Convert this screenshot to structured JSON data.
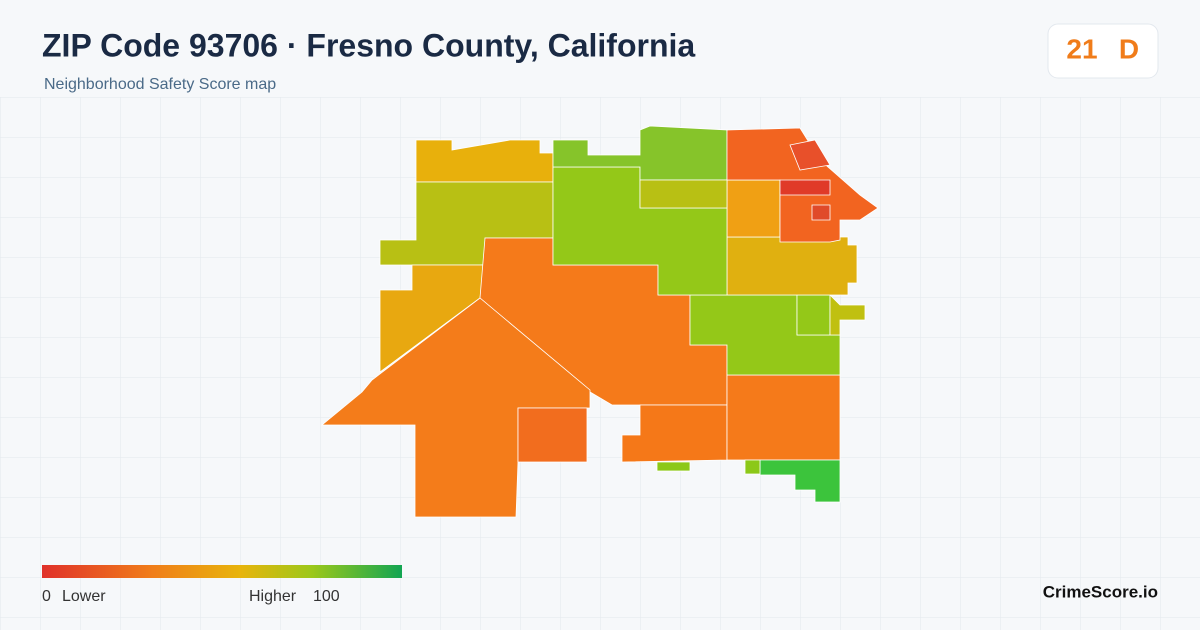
{
  "header": {
    "title": "ZIP Code 93706 · Fresno County, California",
    "subtitle": "Neighborhood Safety Score map"
  },
  "score": {
    "value": 21,
    "grade": "D"
  },
  "legend": {
    "min": 0,
    "min_label": "Lower",
    "max_label": "Higher",
    "max": 100
  },
  "brand": "CrimeScore.io"
}
